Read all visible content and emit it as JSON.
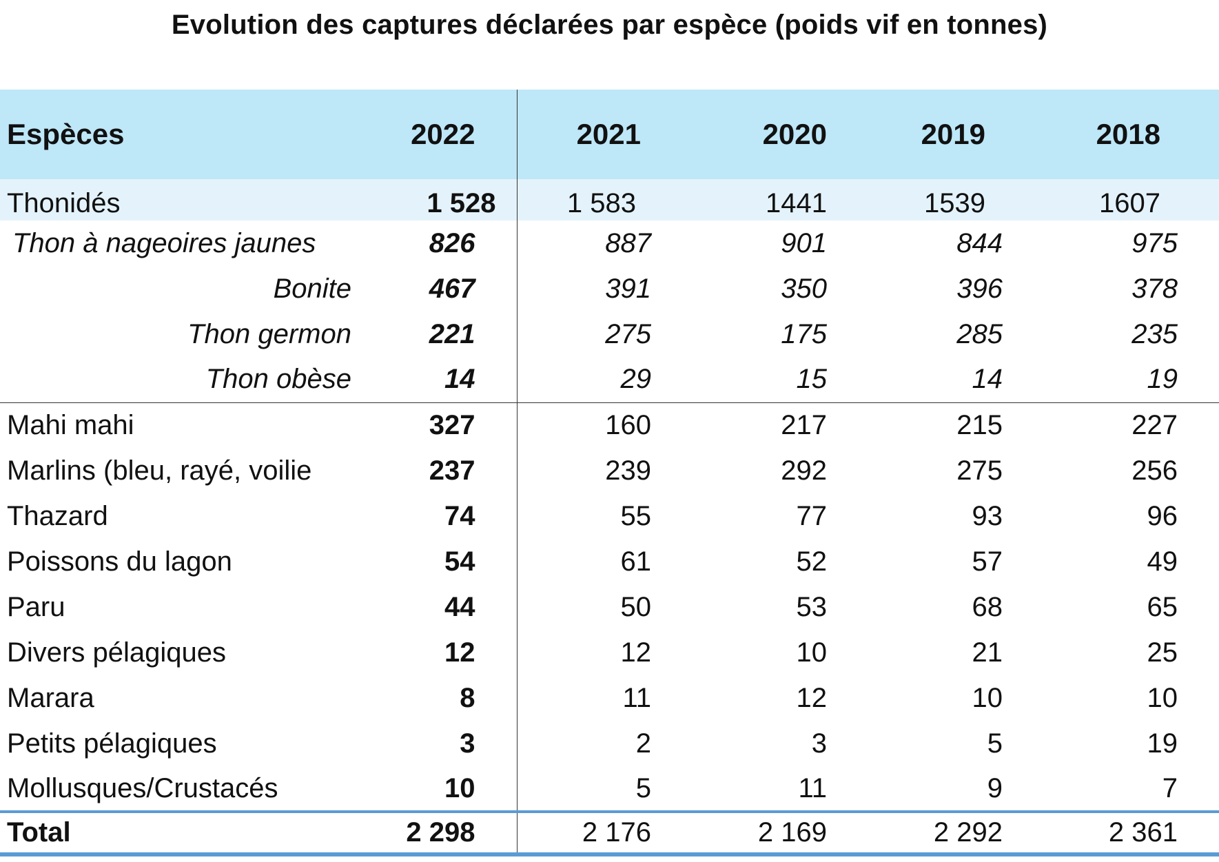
{
  "chart_data": {
    "type": "table",
    "title": "Evolution des captures déclarées par espèce (poids vif en tonnes)",
    "columns": [
      "Espèces",
      "2022",
      "2021",
      "2020",
      "2019",
      "2018"
    ],
    "group_row": {
      "label": "Thonidés",
      "values": [
        "1 528",
        "1 583",
        "1441",
        "1539",
        "1607"
      ]
    },
    "sub_rows": [
      {
        "label": "Thon à nageoires jaunes",
        "values": [
          "826",
          "887",
          "901",
          "844",
          "975"
        ]
      },
      {
        "label": "Bonite",
        "values": [
          "467",
          "391",
          "350",
          "396",
          "378"
        ]
      },
      {
        "label": "Thon germon",
        "values": [
          "221",
          "275",
          "175",
          "285",
          "235"
        ]
      },
      {
        "label": "Thon obèse",
        "values": [
          "14",
          "29",
          "15",
          "14",
          "19"
        ]
      }
    ],
    "rows": [
      {
        "label": "Mahi mahi",
        "values": [
          "327",
          "160",
          "217",
          "215",
          "227"
        ]
      },
      {
        "label": "Marlins (bleu, rayé, voilie",
        "values": [
          "237",
          "239",
          "292",
          "275",
          "256"
        ]
      },
      {
        "label": "Thazard",
        "values": [
          "74",
          "55",
          "77",
          "93",
          "96"
        ]
      },
      {
        "label": "Poissons du lagon",
        "values": [
          "54",
          "61",
          "52",
          "57",
          "49"
        ]
      },
      {
        "label": "Paru",
        "values": [
          "44",
          "50",
          "53",
          "68",
          "65"
        ]
      },
      {
        "label": "Divers pélagiques",
        "values": [
          "12",
          "12",
          "10",
          "21",
          "25"
        ]
      },
      {
        "label": "Marara",
        "values": [
          "8",
          "11",
          "12",
          "10",
          "10"
        ]
      },
      {
        "label": "Petits pélagiques",
        "values": [
          "3",
          "2",
          "3",
          "5",
          "19"
        ]
      },
      {
        "label": "Mollusques/Crustacés",
        "values": [
          "10",
          "5",
          "11",
          "9",
          "7"
        ]
      }
    ],
    "total_row": {
      "label": "Total",
      "values": [
        "2 298",
        "2 176",
        "2 169",
        "2 292",
        "2 361"
      ]
    },
    "colors": {
      "header_bg": "#bee7f8",
      "group_bg": "#e4f3fb",
      "rule": "#5b9bd5"
    }
  }
}
